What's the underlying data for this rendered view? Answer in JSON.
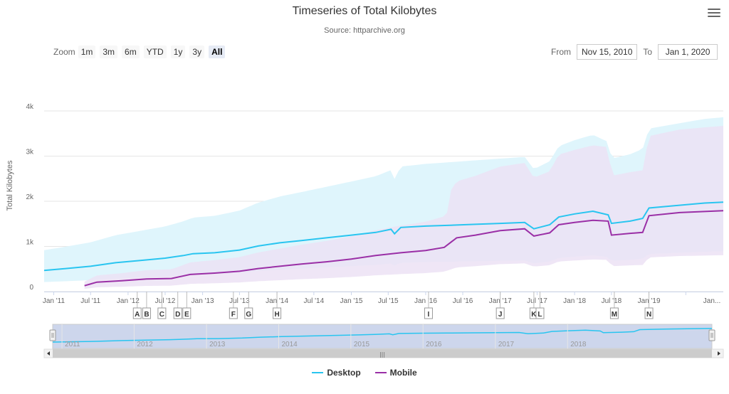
{
  "header": {
    "title": "Timeseries of Total Kilobytes",
    "subtitle": "Source: httparchive.org"
  },
  "range_selector": {
    "zoom_label": "Zoom",
    "buttons": [
      "1m",
      "3m",
      "6m",
      "YTD",
      "1y",
      "3y",
      "All"
    ],
    "selected": "All",
    "from_label": "From",
    "from_value": "Nov 15, 2010",
    "to_label": "To",
    "to_value": "Jan 1, 2020"
  },
  "colors": {
    "desktop": "#29c5f0",
    "mobile": "#9a2fa6",
    "desktop_band": "#dff5fc",
    "mobile_band": "#ece2f4",
    "overlap_band": "#dcdcf4",
    "navigator_mask": "#c8d2ea"
  },
  "chart_data": {
    "type": "line",
    "title": "Timeseries of Total Kilobytes",
    "subtitle": "Source: httparchive.org",
    "ylabel": "Total Kilobytes",
    "ylim": [
      0,
      4000
    ],
    "y_ticks": [
      "0",
      "1k",
      "2k",
      "3k",
      "4k"
    ],
    "x_ticks": [
      "Jan '11",
      "Jul '11",
      "Jan '12",
      "Jul '12",
      "Jan '13",
      "Jul '13",
      "Jan '14",
      "Jul '14",
      "Jan '15",
      "Jul '15",
      "Jan '16",
      "Jul '16",
      "Jan '17",
      "Jul '17",
      "Jan '18",
      "Jul '18",
      "Jan '19",
      "Jan..."
    ],
    "navigator_years": [
      "2011",
      "2012",
      "2013",
      "2014",
      "2015",
      "2016",
      "2017",
      "2018"
    ],
    "grid": true,
    "legend_position": "bottom-center",
    "series": [
      {
        "name": "Desktop",
        "points": [
          [
            "2010-11-15",
            470
          ],
          [
            "2011-03-01",
            510
          ],
          [
            "2011-07-01",
            560
          ],
          [
            "2011-11-01",
            640
          ],
          [
            "2012-03-01",
            690
          ],
          [
            "2012-07-01",
            740
          ],
          [
            "2012-10-01",
            800
          ],
          [
            "2012-11-15",
            840
          ],
          [
            "2013-03-01",
            860
          ],
          [
            "2013-07-01",
            920
          ],
          [
            "2013-10-01",
            1010
          ],
          [
            "2014-01-15",
            1080
          ],
          [
            "2014-05-01",
            1130
          ],
          [
            "2014-09-01",
            1190
          ],
          [
            "2015-01-01",
            1250
          ],
          [
            "2015-05-01",
            1310
          ],
          [
            "2015-07-15",
            1380
          ],
          [
            "2015-08-01",
            1280
          ],
          [
            "2015-09-01",
            1420
          ],
          [
            "2016-01-01",
            1450
          ],
          [
            "2016-05-01",
            1470
          ],
          [
            "2016-09-01",
            1490
          ],
          [
            "2017-01-01",
            1510
          ],
          [
            "2017-05-01",
            1530
          ],
          [
            "2017-06-15",
            1390
          ],
          [
            "2017-09-01",
            1480
          ],
          [
            "2017-10-15",
            1650
          ],
          [
            "2018-01-01",
            1720
          ],
          [
            "2018-04-01",
            1780
          ],
          [
            "2018-06-15",
            1700
          ],
          [
            "2018-07-01",
            1510
          ],
          [
            "2018-10-01",
            1560
          ],
          [
            "2018-12-01",
            1620
          ],
          [
            "2019-01-01",
            1850
          ],
          [
            "2019-05-01",
            1900
          ],
          [
            "2019-10-01",
            1960
          ],
          [
            "2020-01-01",
            1980
          ]
        ]
      },
      {
        "name": "Mobile",
        "points": [
          [
            "2011-06-01",
            130
          ],
          [
            "2011-08-01",
            210
          ],
          [
            "2011-12-01",
            240
          ],
          [
            "2012-04-01",
            280
          ],
          [
            "2012-08-01",
            290
          ],
          [
            "2012-11-01",
            380
          ],
          [
            "2013-03-01",
            410
          ],
          [
            "2013-07-01",
            450
          ],
          [
            "2013-10-01",
            510
          ],
          [
            "2014-01-15",
            560
          ],
          [
            "2014-05-01",
            610
          ],
          [
            "2014-09-01",
            660
          ],
          [
            "2015-01-01",
            720
          ],
          [
            "2015-05-01",
            800
          ],
          [
            "2015-09-01",
            860
          ],
          [
            "2016-01-01",
            910
          ],
          [
            "2016-04-01",
            980
          ],
          [
            "2016-06-01",
            1190
          ],
          [
            "2016-09-01",
            1250
          ],
          [
            "2017-01-01",
            1350
          ],
          [
            "2017-05-01",
            1390
          ],
          [
            "2017-06-15",
            1230
          ],
          [
            "2017-09-01",
            1300
          ],
          [
            "2017-10-15",
            1480
          ],
          [
            "2018-01-01",
            1530
          ],
          [
            "2018-04-01",
            1580
          ],
          [
            "2018-06-15",
            1560
          ],
          [
            "2018-07-01",
            1250
          ],
          [
            "2018-10-01",
            1290
          ],
          [
            "2018-12-01",
            1310
          ],
          [
            "2019-01-01",
            1680
          ],
          [
            "2019-06-01",
            1750
          ],
          [
            "2020-01-01",
            1790
          ]
        ]
      }
    ],
    "annotations": [
      {
        "date": "2012-02-15",
        "label": "A"
      },
      {
        "date": "2012-04-01",
        "label": "B"
      },
      {
        "date": "2012-06-15",
        "label": "C"
      },
      {
        "date": "2012-09-01",
        "label": "D"
      },
      {
        "date": "2012-10-15",
        "label": "E"
      },
      {
        "date": "2013-06-01",
        "label": "F"
      },
      {
        "date": "2013-08-15",
        "label": "G"
      },
      {
        "date": "2014-01-01",
        "label": "H"
      },
      {
        "date": "2016-01-15",
        "label": "I"
      },
      {
        "date": "2017-01-01",
        "label": "J"
      },
      {
        "date": "2017-06-15",
        "label": "K"
      },
      {
        "date": "2017-07-15",
        "label": "L"
      },
      {
        "date": "2018-07-15",
        "label": "M"
      },
      {
        "date": "2019-01-01",
        "label": "N"
      }
    ]
  }
}
